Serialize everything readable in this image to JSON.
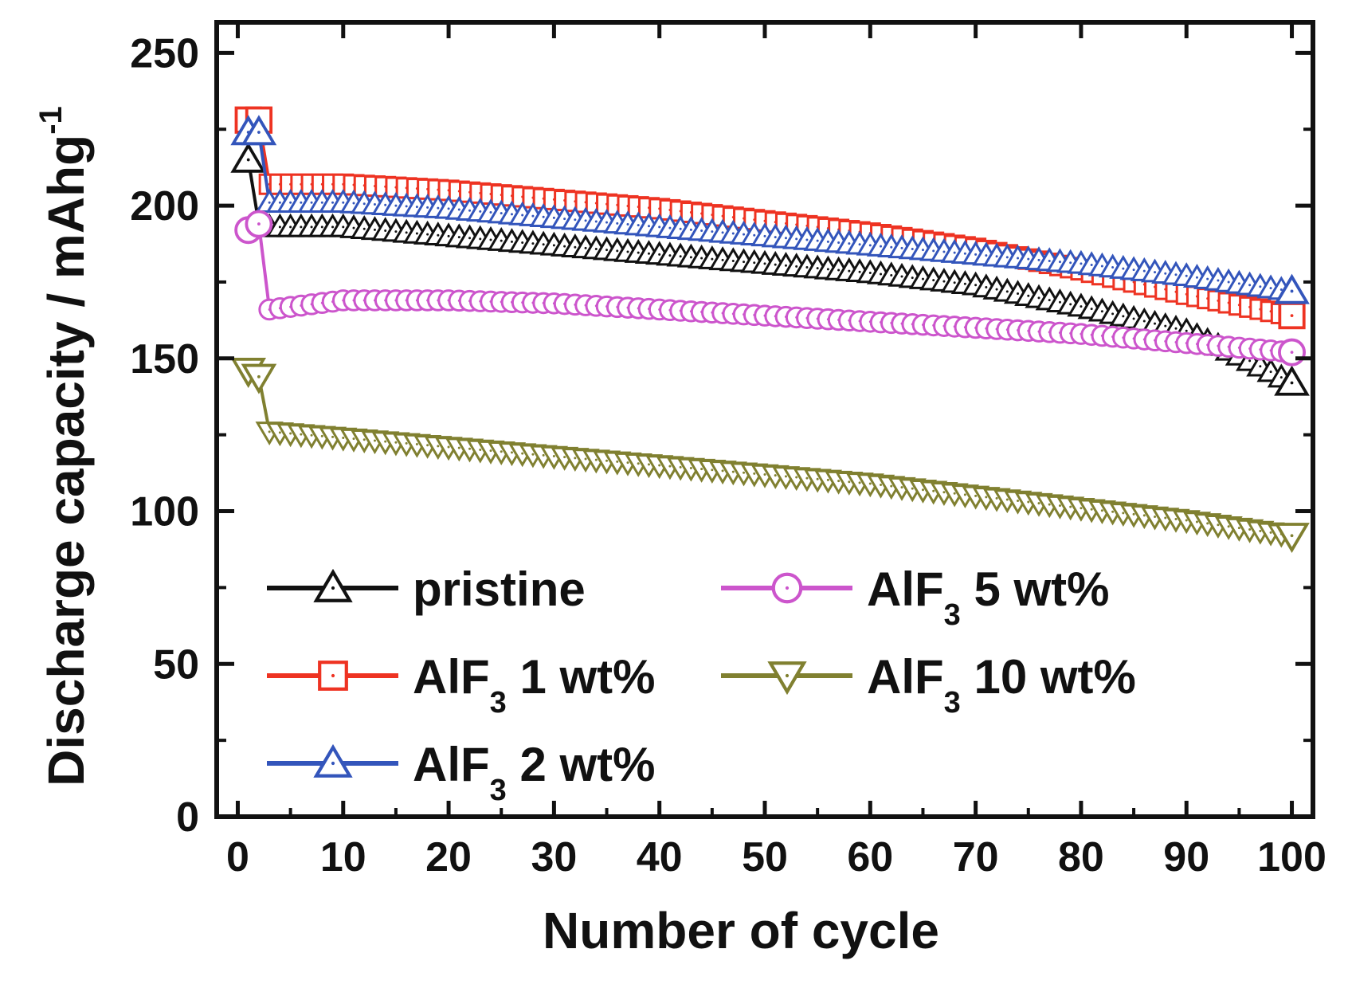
{
  "chart_data": {
    "type": "line",
    "title": "",
    "xlabel": "Number of cycle",
    "ylabel": "Discharge capacity / mAhg",
    "ylabel_superscript": "-1",
    "xlim": [
      -2,
      102
    ],
    "ylim": [
      0,
      260
    ],
    "x_ticks": [
      0,
      10,
      20,
      30,
      40,
      50,
      60,
      70,
      80,
      90,
      100
    ],
    "y_ticks": [
      0,
      50,
      100,
      150,
      200,
      250
    ],
    "grid": false,
    "legend_position": "lower-left",
    "series": [
      {
        "name": "pristine",
        "label_main": "pristine",
        "label_sub": "",
        "label_tail": "",
        "color": "#111111",
        "marker": "triangle-up",
        "first_points": [
          [
            1,
            215
          ],
          [
            2,
            194
          ]
        ],
        "anchors": [
          [
            3,
            193
          ],
          [
            10,
            193
          ],
          [
            20,
            190
          ],
          [
            30,
            187
          ],
          [
            40,
            184
          ],
          [
            50,
            181
          ],
          [
            60,
            178
          ],
          [
            70,
            174
          ],
          [
            80,
            167
          ],
          [
            90,
            159
          ],
          [
            95,
            151
          ],
          [
            100,
            142
          ]
        ]
      },
      {
        "name": "AlF3 1 wt%",
        "label_main": "AlF",
        "label_sub": "3",
        "label_tail": " 1 wt%",
        "color": "#ee3322",
        "marker": "square",
        "first_points": [
          [
            1,
            228
          ],
          [
            2,
            228
          ]
        ],
        "anchors": [
          [
            3,
            207
          ],
          [
            10,
            207
          ],
          [
            20,
            205
          ],
          [
            30,
            202
          ],
          [
            40,
            199
          ],
          [
            50,
            195
          ],
          [
            60,
            191
          ],
          [
            70,
            186
          ],
          [
            80,
            179
          ],
          [
            90,
            171
          ],
          [
            100,
            164
          ]
        ]
      },
      {
        "name": "AlF3 2 wt%",
        "label_main": "AlF",
        "label_sub": "3",
        "label_tail": " 2 wt%",
        "color": "#3355bb",
        "marker": "triangle-up",
        "first_points": [
          [
            1,
            224
          ],
          [
            2,
            224
          ]
        ],
        "anchors": [
          [
            3,
            201
          ],
          [
            10,
            201
          ],
          [
            20,
            199
          ],
          [
            30,
            196
          ],
          [
            40,
            193
          ],
          [
            50,
            190
          ],
          [
            60,
            187
          ],
          [
            70,
            184
          ],
          [
            80,
            181
          ],
          [
            90,
            177
          ],
          [
            100,
            172
          ]
        ]
      },
      {
        "name": "AlF3 5 wt%",
        "label_main": "AlF",
        "label_sub": "3",
        "label_tail": " 5 wt%",
        "color": "#cc55cc",
        "marker": "circle",
        "first_points": [
          [
            1,
            192
          ],
          [
            2,
            194
          ]
        ],
        "anchors": [
          [
            3,
            166
          ],
          [
            10,
            169
          ],
          [
            20,
            169
          ],
          [
            30,
            168
          ],
          [
            40,
            166
          ],
          [
            50,
            164
          ],
          [
            60,
            162
          ],
          [
            70,
            160
          ],
          [
            80,
            158
          ],
          [
            90,
            155
          ],
          [
            100,
            152
          ]
        ]
      },
      {
        "name": "AlF3 10 wt%",
        "label_main": "AlF",
        "label_sub": "3",
        "label_tail": " 10 wt%",
        "color": "#808030",
        "marker": "triangle-down",
        "first_points": [
          [
            1,
            146
          ],
          [
            2,
            144
          ]
        ],
        "anchors": [
          [
            3,
            126
          ],
          [
            10,
            124
          ],
          [
            20,
            121
          ],
          [
            30,
            118
          ],
          [
            40,
            115
          ],
          [
            50,
            112
          ],
          [
            60,
            109
          ],
          [
            70,
            105
          ],
          [
            80,
            101
          ],
          [
            90,
            97
          ],
          [
            100,
            92
          ]
        ]
      }
    ]
  }
}
